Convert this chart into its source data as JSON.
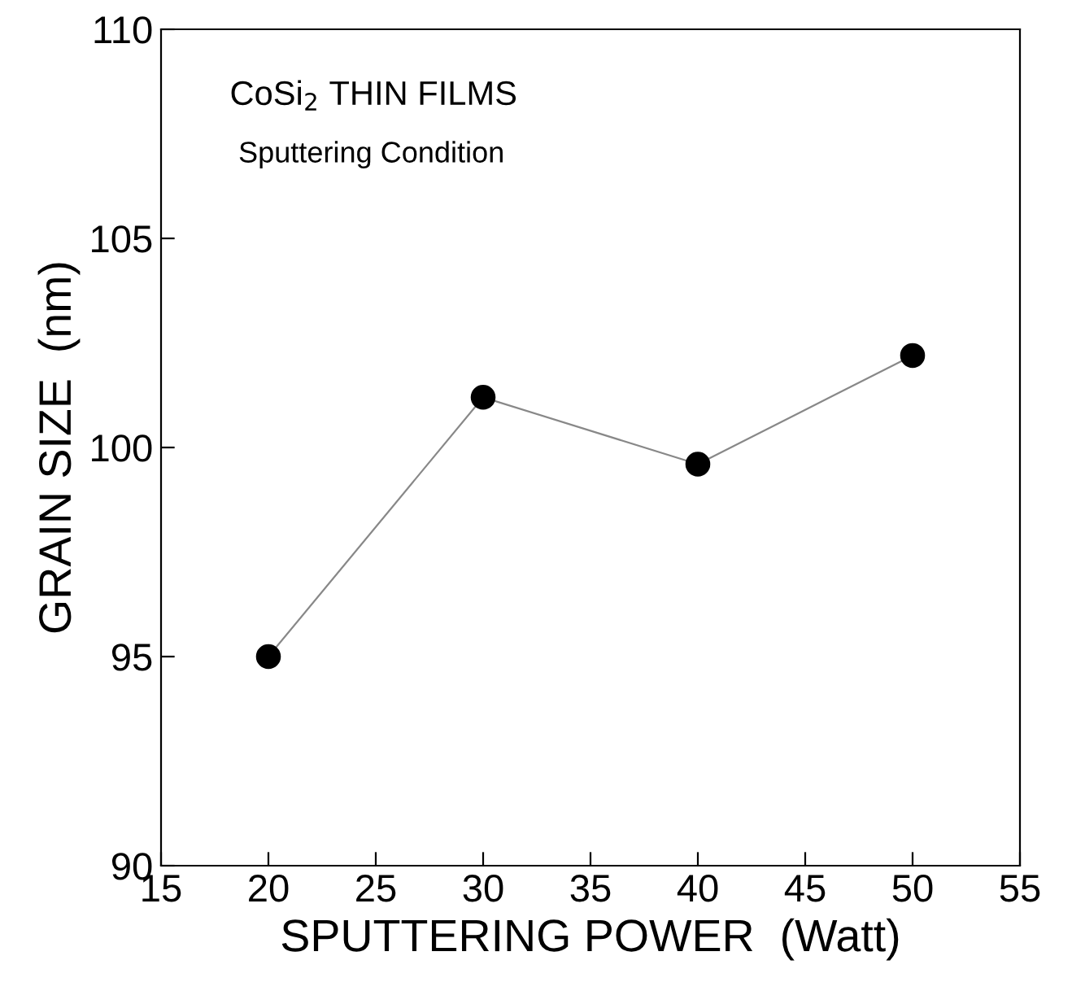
{
  "chart_data": {
    "type": "line",
    "title": "CoSi$_{2}$ THIN FILMS",
    "subtitle": "Sputtering Condition",
    "xlabel": "SPUTTERING POWER  (Watt)",
    "ylabel": "GRAIN SIZE  (nm)",
    "x": [
      20,
      30,
      40,
      50
    ],
    "series": [
      {
        "color": "#000000",
        "values": [
          95.0,
          101.2,
          99.6,
          102.2
        ]
      }
    ],
    "xlim": [
      15,
      55
    ],
    "xticks": [
      15,
      20,
      25,
      30,
      35,
      40,
      45,
      50,
      55
    ],
    "ylim": [
      90,
      110
    ],
    "yticks": [
      90,
      95,
      100,
      105,
      110
    ],
    "marker": "circle",
    "line_style": "solid",
    "grid": false,
    "legend": false
  }
}
